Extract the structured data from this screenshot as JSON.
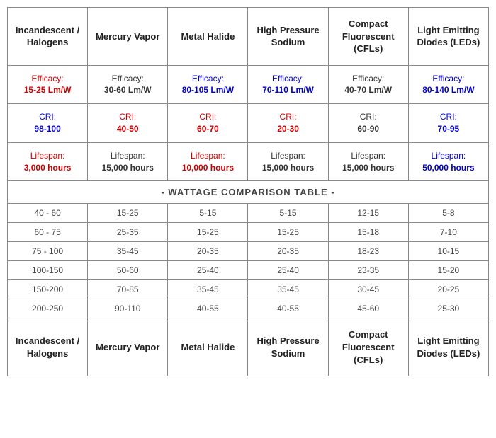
{
  "colors": {
    "red": "#cc0000",
    "blue": "#0000cc",
    "dark": "#333333"
  },
  "headers": [
    "Incandescent / Halogens",
    "Mercury Vapor",
    "Metal Halide",
    "High Pressure Sodium",
    "Compact Fluorescent (CFLs)",
    "Light Emitting Diodes (LEDs)"
  ],
  "metrics": [
    {
      "label": "Efficacy:",
      "cells": [
        {
          "value": "15-25 Lm/W",
          "color": "red"
        },
        {
          "value": "30-60 Lm/W",
          "color": "dark"
        },
        {
          "value": "80-105 Lm/W",
          "color": "blue"
        },
        {
          "value": "70-110 Lm/W",
          "color": "blue"
        },
        {
          "value": "40-70 Lm/W",
          "color": "dark"
        },
        {
          "value": "80-140 Lm/W",
          "color": "blue"
        }
      ]
    },
    {
      "label": "CRI:",
      "cells": [
        {
          "value": "98-100",
          "color": "blue"
        },
        {
          "value": "40-50",
          "color": "red"
        },
        {
          "value": "60-70",
          "color": "red"
        },
        {
          "value": "20-30",
          "color": "red"
        },
        {
          "value": "60-90",
          "color": "dark"
        },
        {
          "value": "70-95",
          "color": "blue"
        }
      ]
    },
    {
      "label": "Lifespan:",
      "cells": [
        {
          "value": "3,000 hours",
          "color": "red"
        },
        {
          "value": "15,000 hours",
          "color": "dark"
        },
        {
          "value": "10,000 hours",
          "color": "red"
        },
        {
          "value": "15,000 hours",
          "color": "dark"
        },
        {
          "value": "15,000 hours",
          "color": "dark"
        },
        {
          "value": "50,000 hours",
          "color": "blue"
        }
      ]
    }
  ],
  "wattage_title": "- WATTAGE COMPARISON TABLE -",
  "wattage_rows": [
    [
      "40 - 60",
      "15-25",
      "5-15",
      "5-15",
      "12-15",
      "5-8"
    ],
    [
      "60 - 75",
      "25-35",
      "15-25",
      "15-25",
      "15-18",
      "7-10"
    ],
    [
      "75 - 100",
      "35-45",
      "20-35",
      "20-35",
      "18-23",
      "10-15"
    ],
    [
      "100-150",
      "50-60",
      "25-40",
      "25-40",
      "23-35",
      "15-20"
    ],
    [
      "150-200",
      "70-85",
      "35-45",
      "35-45",
      "30-45",
      "20-25"
    ],
    [
      "200-250",
      "90-110",
      "40-55",
      "40-55",
      "45-60",
      "25-30"
    ]
  ]
}
